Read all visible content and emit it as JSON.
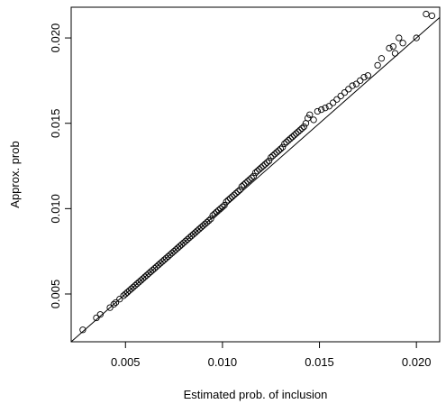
{
  "chart_data": {
    "type": "scatter",
    "title": "",
    "xlabel": "Estimated prob. of inclusion",
    "ylabel": "Approx. prob",
    "xlim": [
      0.0022,
      0.0212
    ],
    "ylim": [
      0.0022,
      0.0218
    ],
    "xticks": [
      0.005,
      0.01,
      0.015,
      0.02
    ],
    "yticks": [
      0.005,
      0.01,
      0.015,
      0.02
    ],
    "xtick_labels": [
      "0.005",
      "0.010",
      "0.015",
      "0.020"
    ],
    "ytick_labels": [
      "0.005",
      "0.010",
      "0.015",
      "0.020"
    ],
    "grid": false,
    "legend": "none",
    "reference_line": {
      "type": "identity",
      "from": [
        0.0022,
        0.0022
      ],
      "to": [
        0.0212,
        0.0212
      ]
    },
    "points": [
      [
        0.0028,
        0.0029
      ],
      [
        0.0035,
        0.0036
      ],
      [
        0.0037,
        0.0038
      ],
      [
        0.0042,
        0.0042
      ],
      [
        0.0044,
        0.0044
      ],
      [
        0.0045,
        0.0045
      ],
      [
        0.0047,
        0.0047
      ],
      [
        0.0049,
        0.0049
      ],
      [
        0.005,
        0.005
      ],
      [
        0.0051,
        0.0051
      ],
      [
        0.0052,
        0.0052
      ],
      [
        0.0053,
        0.0053
      ],
      [
        0.0054,
        0.0054
      ],
      [
        0.0055,
        0.0055
      ],
      [
        0.0056,
        0.0056
      ],
      [
        0.0057,
        0.0057
      ],
      [
        0.0058,
        0.0058
      ],
      [
        0.0059,
        0.0059
      ],
      [
        0.006,
        0.006
      ],
      [
        0.0061,
        0.0061
      ],
      [
        0.0062,
        0.0062
      ],
      [
        0.0063,
        0.0063
      ],
      [
        0.0064,
        0.0064
      ],
      [
        0.0065,
        0.0065
      ],
      [
        0.0066,
        0.0066
      ],
      [
        0.0067,
        0.0067
      ],
      [
        0.0068,
        0.0068
      ],
      [
        0.0069,
        0.0069
      ],
      [
        0.007,
        0.007
      ],
      [
        0.0071,
        0.0071
      ],
      [
        0.0072,
        0.0072
      ],
      [
        0.0073,
        0.0073
      ],
      [
        0.0074,
        0.0074
      ],
      [
        0.0075,
        0.0075
      ],
      [
        0.0076,
        0.0076
      ],
      [
        0.0077,
        0.0077
      ],
      [
        0.0078,
        0.0078
      ],
      [
        0.0079,
        0.0079
      ],
      [
        0.008,
        0.008
      ],
      [
        0.0081,
        0.0081
      ],
      [
        0.0082,
        0.0082
      ],
      [
        0.0083,
        0.0083
      ],
      [
        0.0084,
        0.0084
      ],
      [
        0.0085,
        0.0085
      ],
      [
        0.0086,
        0.0086
      ],
      [
        0.0087,
        0.0087
      ],
      [
        0.0088,
        0.0088
      ],
      [
        0.0089,
        0.0089
      ],
      [
        0.009,
        0.009
      ],
      [
        0.0091,
        0.0091
      ],
      [
        0.0092,
        0.0092
      ],
      [
        0.0093,
        0.0093
      ],
      [
        0.0094,
        0.0094
      ],
      [
        0.0095,
        0.0096
      ],
      [
        0.0096,
        0.0097
      ],
      [
        0.0097,
        0.0098
      ],
      [
        0.0098,
        0.0099
      ],
      [
        0.0099,
        0.01
      ],
      [
        0.01,
        0.0101
      ],
      [
        0.0101,
        0.0102
      ],
      [
        0.0102,
        0.0104
      ],
      [
        0.0103,
        0.0105
      ],
      [
        0.0104,
        0.0106
      ],
      [
        0.0105,
        0.0107
      ],
      [
        0.0106,
        0.0108
      ],
      [
        0.0107,
        0.0109
      ],
      [
        0.0108,
        0.011
      ],
      [
        0.0109,
        0.0111
      ],
      [
        0.011,
        0.0113
      ],
      [
        0.0111,
        0.0114
      ],
      [
        0.0112,
        0.0115
      ],
      [
        0.0113,
        0.0116
      ],
      [
        0.0114,
        0.0117
      ],
      [
        0.0115,
        0.0118
      ],
      [
        0.0116,
        0.0119
      ],
      [
        0.0117,
        0.0121
      ],
      [
        0.0118,
        0.0122
      ],
      [
        0.0119,
        0.0123
      ],
      [
        0.012,
        0.0124
      ],
      [
        0.0121,
        0.0125
      ],
      [
        0.0122,
        0.0126
      ],
      [
        0.0123,
        0.0127
      ],
      [
        0.0124,
        0.0128
      ],
      [
        0.0125,
        0.013
      ],
      [
        0.0126,
        0.0131
      ],
      [
        0.0127,
        0.0132
      ],
      [
        0.0128,
        0.0133
      ],
      [
        0.0129,
        0.0134
      ],
      [
        0.013,
        0.0135
      ],
      [
        0.0131,
        0.0136
      ],
      [
        0.0132,
        0.0138
      ],
      [
        0.0133,
        0.0139
      ],
      [
        0.0134,
        0.014
      ],
      [
        0.0135,
        0.0141
      ],
      [
        0.0136,
        0.0142
      ],
      [
        0.0137,
        0.0143
      ],
      [
        0.0138,
        0.0144
      ],
      [
        0.0139,
        0.0145
      ],
      [
        0.014,
        0.0146
      ],
      [
        0.0141,
        0.0147
      ],
      [
        0.0142,
        0.0148
      ],
      [
        0.0143,
        0.015
      ],
      [
        0.0144,
        0.0153
      ],
      [
        0.0145,
        0.0155
      ],
      [
        0.0147,
        0.0152
      ],
      [
        0.0149,
        0.0157
      ],
      [
        0.0151,
        0.0158
      ],
      [
        0.0153,
        0.0159
      ],
      [
        0.0155,
        0.016
      ],
      [
        0.0157,
        0.0162
      ],
      [
        0.0159,
        0.0164
      ],
      [
        0.0161,
        0.0166
      ],
      [
        0.0163,
        0.0168
      ],
      [
        0.0165,
        0.017
      ],
      [
        0.0167,
        0.0172
      ],
      [
        0.0169,
        0.0173
      ],
      [
        0.0171,
        0.0175
      ],
      [
        0.0173,
        0.0177
      ],
      [
        0.0175,
        0.0178
      ],
      [
        0.018,
        0.0184
      ],
      [
        0.0182,
        0.0188
      ],
      [
        0.0186,
        0.0194
      ],
      [
        0.0188,
        0.0195
      ],
      [
        0.0189,
        0.0191
      ],
      [
        0.0191,
        0.02
      ],
      [
        0.0193,
        0.0197
      ],
      [
        0.02,
        0.02
      ],
      [
        0.0205,
        0.0214
      ],
      [
        0.0208,
        0.0213
      ]
    ]
  }
}
